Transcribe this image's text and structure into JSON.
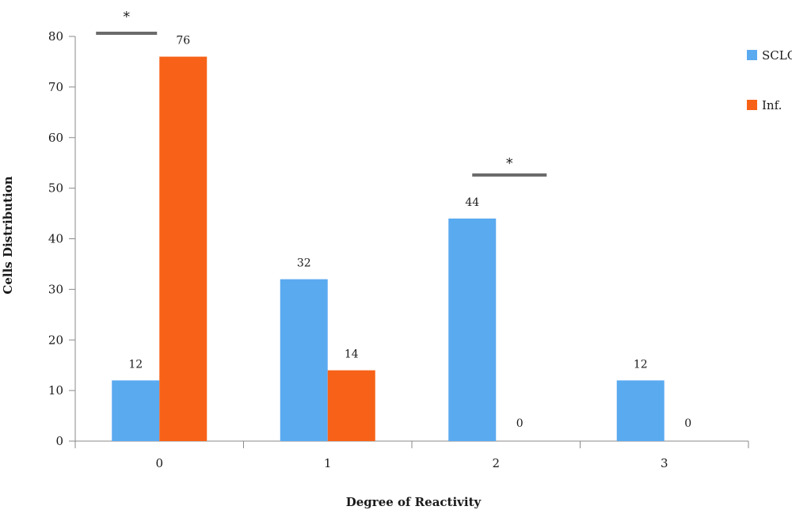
{
  "chart_data": {
    "type": "bar",
    "title": "",
    "xlabel": "Degree of Reactivity",
    "ylabel": "Cells Distribution",
    "categories": [
      "0",
      "1",
      "2",
      "3"
    ],
    "series": [
      {
        "name": "SCLC",
        "values": [
          12,
          32,
          44,
          12
        ],
        "color": "#5aaaf0",
        "value_labels": [
          "12",
          "32",
          "44",
          "12"
        ]
      },
      {
        "name": "Inf.",
        "values": [
          76,
          14,
          0,
          0
        ],
        "color": "#f76218",
        "value_labels": [
          "76",
          "14",
          "0",
          "0"
        ]
      }
    ],
    "ylim": [
      0,
      80
    ],
    "yticks": [
      0,
      10,
      20,
      30,
      40,
      50,
      60,
      70,
      80
    ],
    "grid": false,
    "legend": "top-right",
    "significance": [
      {
        "category_index": 0,
        "label": "*"
      },
      {
        "category_index": 2,
        "label": "*"
      }
    ]
  }
}
